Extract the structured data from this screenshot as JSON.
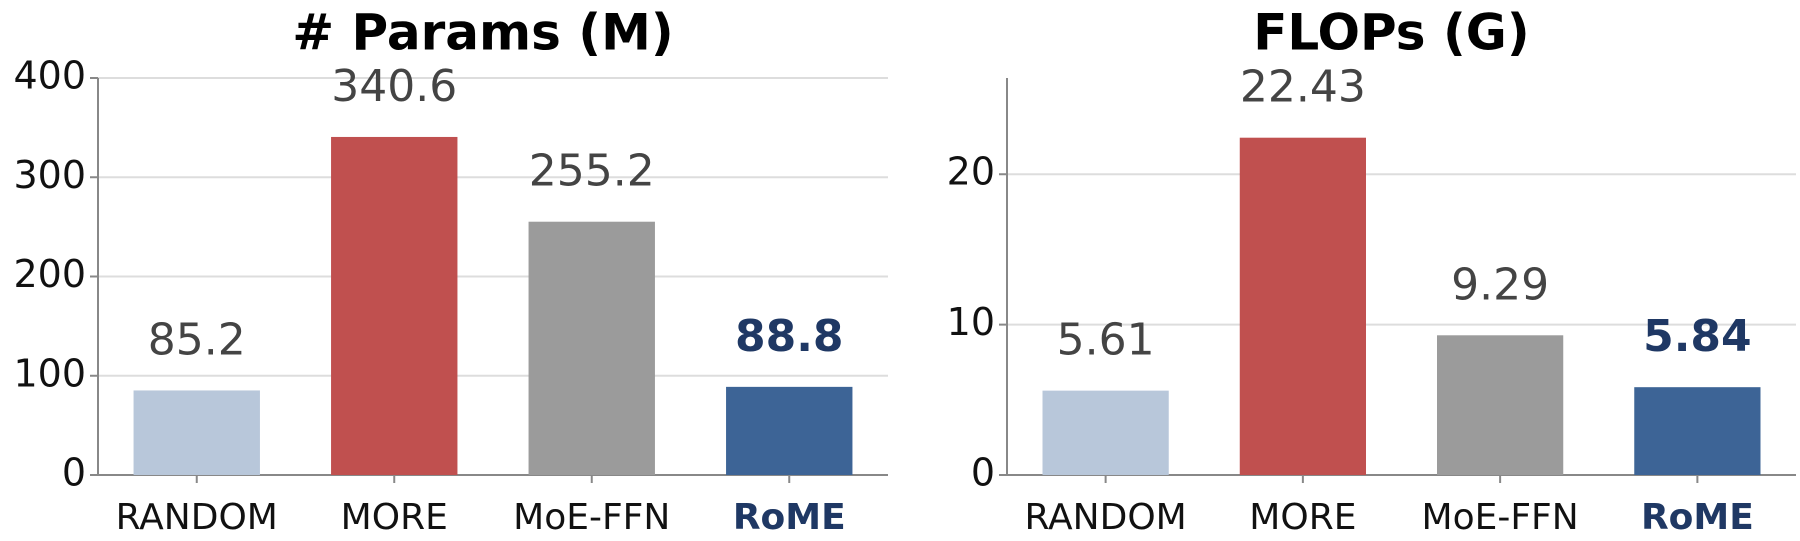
{
  "chart_data": [
    {
      "type": "bar",
      "title": "# Params (M)",
      "categories": [
        "RANDOM",
        "MORE",
        "MoE-FFN",
        "RoME"
      ],
      "values": [
        85.2,
        340.6,
        255.2,
        88.8
      ],
      "colors": [
        "#b8c7da",
        "#c0504f",
        "#9b9b9b",
        "#3d6496"
      ],
      "highlight_index": 3,
      "highlight_color": "#1f3864",
      "ylim": [
        0,
        400
      ],
      "yticks": [
        0,
        100,
        200,
        300,
        400
      ],
      "grid": true
    },
    {
      "type": "bar",
      "title": "FLOPs (G)",
      "categories": [
        "RANDOM",
        "MORE",
        "MoE-FFN",
        "RoME"
      ],
      "values": [
        5.61,
        22.43,
        9.29,
        5.84
      ],
      "colors": [
        "#b8c7da",
        "#c0504f",
        "#9b9b9b",
        "#3d6496"
      ],
      "highlight_index": 3,
      "highlight_color": "#1f3864",
      "ylim": [
        0,
        26.4
      ],
      "yticks": [
        0,
        10,
        20
      ],
      "grid": true
    }
  ]
}
